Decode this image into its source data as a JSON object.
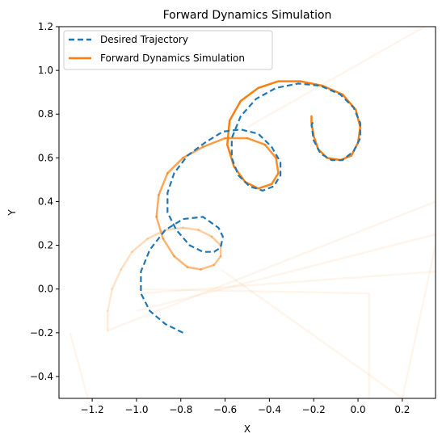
{
  "chart_data": {
    "type": "line",
    "title": "Forward Dynamics Simulation",
    "xlabel": "X",
    "ylabel": "Y",
    "xlim": [
      -1.35,
      0.35
    ],
    "ylim": [
      -0.5,
      1.2
    ],
    "xticks": [
      "-1.2",
      "-1.0",
      "-0.8",
      "-0.6",
      "-0.4",
      "-0.2",
      "0.0",
      "0.2"
    ],
    "yticks": [
      "-0.4",
      "-0.2",
      "0.0",
      "0.2",
      "0.4",
      "0.6",
      "0.8",
      "1.0",
      "1.2"
    ],
    "xtick_values": [
      -1.2,
      -1.0,
      -0.8,
      -0.6,
      -0.4,
      -0.2,
      0.0,
      0.2
    ],
    "ytick_values": [
      -0.4,
      -0.2,
      0.0,
      0.2,
      0.4,
      0.6,
      0.8,
      1.0,
      1.2
    ],
    "grid": false,
    "legend_position": "top-left",
    "series": [
      {
        "name": "Desired Trajectory",
        "style": "dashed",
        "color": "#1f77b4",
        "points": [
          [
            -0.79,
            -0.2
          ],
          [
            -0.87,
            -0.16
          ],
          [
            -0.94,
            -0.1
          ],
          [
            -0.98,
            -0.02
          ],
          [
            -0.98,
            0.08
          ],
          [
            -0.94,
            0.18
          ],
          [
            -0.87,
            0.27
          ],
          [
            -0.79,
            0.32
          ],
          [
            -0.7,
            0.33
          ],
          [
            -0.63,
            0.28
          ],
          [
            -0.61,
            0.24
          ],
          [
            -0.62,
            0.19
          ],
          [
            -0.65,
            0.17
          ],
          [
            -0.7,
            0.17
          ],
          [
            -0.76,
            0.2
          ],
          [
            -0.82,
            0.27
          ],
          [
            -0.86,
            0.35
          ],
          [
            -0.86,
            0.44
          ],
          [
            -0.83,
            0.53
          ],
          [
            -0.77,
            0.61
          ],
          [
            -0.69,
            0.67
          ],
          [
            -0.61,
            0.72
          ],
          [
            -0.53,
            0.73
          ],
          [
            -0.45,
            0.71
          ],
          [
            -0.39,
            0.65
          ],
          [
            -0.35,
            0.58
          ],
          [
            -0.35,
            0.52
          ],
          [
            -0.38,
            0.47
          ],
          [
            -0.43,
            0.45
          ],
          [
            -0.49,
            0.47
          ],
          [
            -0.54,
            0.52
          ],
          [
            -0.57,
            0.6
          ],
          [
            -0.57,
            0.69
          ],
          [
            -0.53,
            0.79
          ],
          [
            -0.46,
            0.87
          ],
          [
            -0.37,
            0.92
          ],
          [
            -0.27,
            0.94
          ],
          [
            -0.17,
            0.93
          ],
          [
            -0.08,
            0.89
          ],
          [
            -0.02,
            0.83
          ],
          [
            0.01,
            0.76
          ],
          [
            0.01,
            0.69
          ],
          [
            -0.02,
            0.63
          ],
          [
            -0.07,
            0.59
          ],
          [
            -0.12,
            0.59
          ],
          [
            -0.17,
            0.62
          ],
          [
            -0.2,
            0.68
          ],
          [
            -0.21,
            0.75
          ],
          [
            -0.2,
            0.77
          ]
        ]
      },
      {
        "name": "Forward Dynamics Simulation",
        "style": "solid",
        "color": "#ff7f0e",
        "points": [
          [
            -1.13,
            -0.19
          ],
          [
            -1.13,
            -0.1
          ],
          [
            -1.11,
            0.0
          ],
          [
            -1.07,
            0.09
          ],
          [
            -1.02,
            0.17
          ],
          [
            -0.95,
            0.23
          ],
          [
            -0.87,
            0.27
          ],
          [
            -0.79,
            0.28
          ],
          [
            -0.72,
            0.27
          ],
          [
            -0.66,
            0.24
          ],
          [
            -0.62,
            0.2
          ],
          [
            -0.62,
            0.15
          ],
          [
            -0.65,
            0.11
          ],
          [
            -0.71,
            0.09
          ],
          [
            -0.77,
            0.1
          ],
          [
            -0.83,
            0.15
          ],
          [
            -0.88,
            0.23
          ],
          [
            -0.91,
            0.33
          ],
          [
            -0.9,
            0.43
          ],
          [
            -0.86,
            0.53
          ],
          [
            -0.79,
            0.6
          ],
          [
            -0.7,
            0.65
          ],
          [
            -0.6,
            0.69
          ],
          [
            -0.5,
            0.69
          ],
          [
            -0.42,
            0.66
          ],
          [
            -0.37,
            0.6
          ],
          [
            -0.36,
            0.53
          ],
          [
            -0.39,
            0.48
          ],
          [
            -0.45,
            0.46
          ],
          [
            -0.51,
            0.49
          ],
          [
            -0.56,
            0.56
          ],
          [
            -0.59,
            0.66
          ],
          [
            -0.58,
            0.77
          ],
          [
            -0.53,
            0.86
          ],
          [
            -0.45,
            0.92
          ],
          [
            -0.36,
            0.95
          ],
          [
            -0.26,
            0.95
          ],
          [
            -0.16,
            0.93
          ],
          [
            -0.07,
            0.89
          ],
          [
            -0.01,
            0.82
          ],
          [
            0.01,
            0.74
          ],
          [
            0.0,
            0.67
          ],
          [
            -0.03,
            0.61
          ],
          [
            -0.08,
            0.59
          ],
          [
            -0.14,
            0.6
          ],
          [
            -0.18,
            0.64
          ],
          [
            -0.2,
            0.7
          ],
          [
            -0.21,
            0.76
          ],
          [
            -0.21,
            0.79
          ]
        ]
      }
    ],
    "background_traces": [
      [
        [
          -1.3,
          -0.2
        ],
        [
          -1.22,
          -0.5
        ]
      ],
      [
        [
          -1.13,
          -0.19
        ],
        [
          0.35,
          0.4
        ]
      ],
      [
        [
          -0.98,
          -0.02
        ],
        [
          0.35,
          0.08
        ]
      ],
      [
        [
          -1.0,
          0.0
        ],
        [
          0.05,
          -0.02
        ]
      ],
      [
        [
          0.05,
          -0.02
        ],
        [
          0.05,
          -0.5
        ]
      ],
      [
        [
          -0.62,
          0.09
        ],
        [
          0.2,
          -0.5
        ]
      ],
      [
        [
          0.2,
          -0.5
        ],
        [
          0.35,
          0.2
        ]
      ],
      [
        [
          -0.5,
          0.74
        ],
        [
          0.3,
          1.2
        ]
      ],
      [
        [
          -1.0,
          -0.1
        ],
        [
          0.35,
          0.25
        ]
      ]
    ]
  },
  "legend": {
    "items": [
      {
        "label": "Desired Trajectory",
        "color": "#1f77b4",
        "style": "dashed"
      },
      {
        "label": "Forward Dynamics Simulation",
        "color": "#ff7f0e",
        "style": "solid"
      }
    ]
  }
}
